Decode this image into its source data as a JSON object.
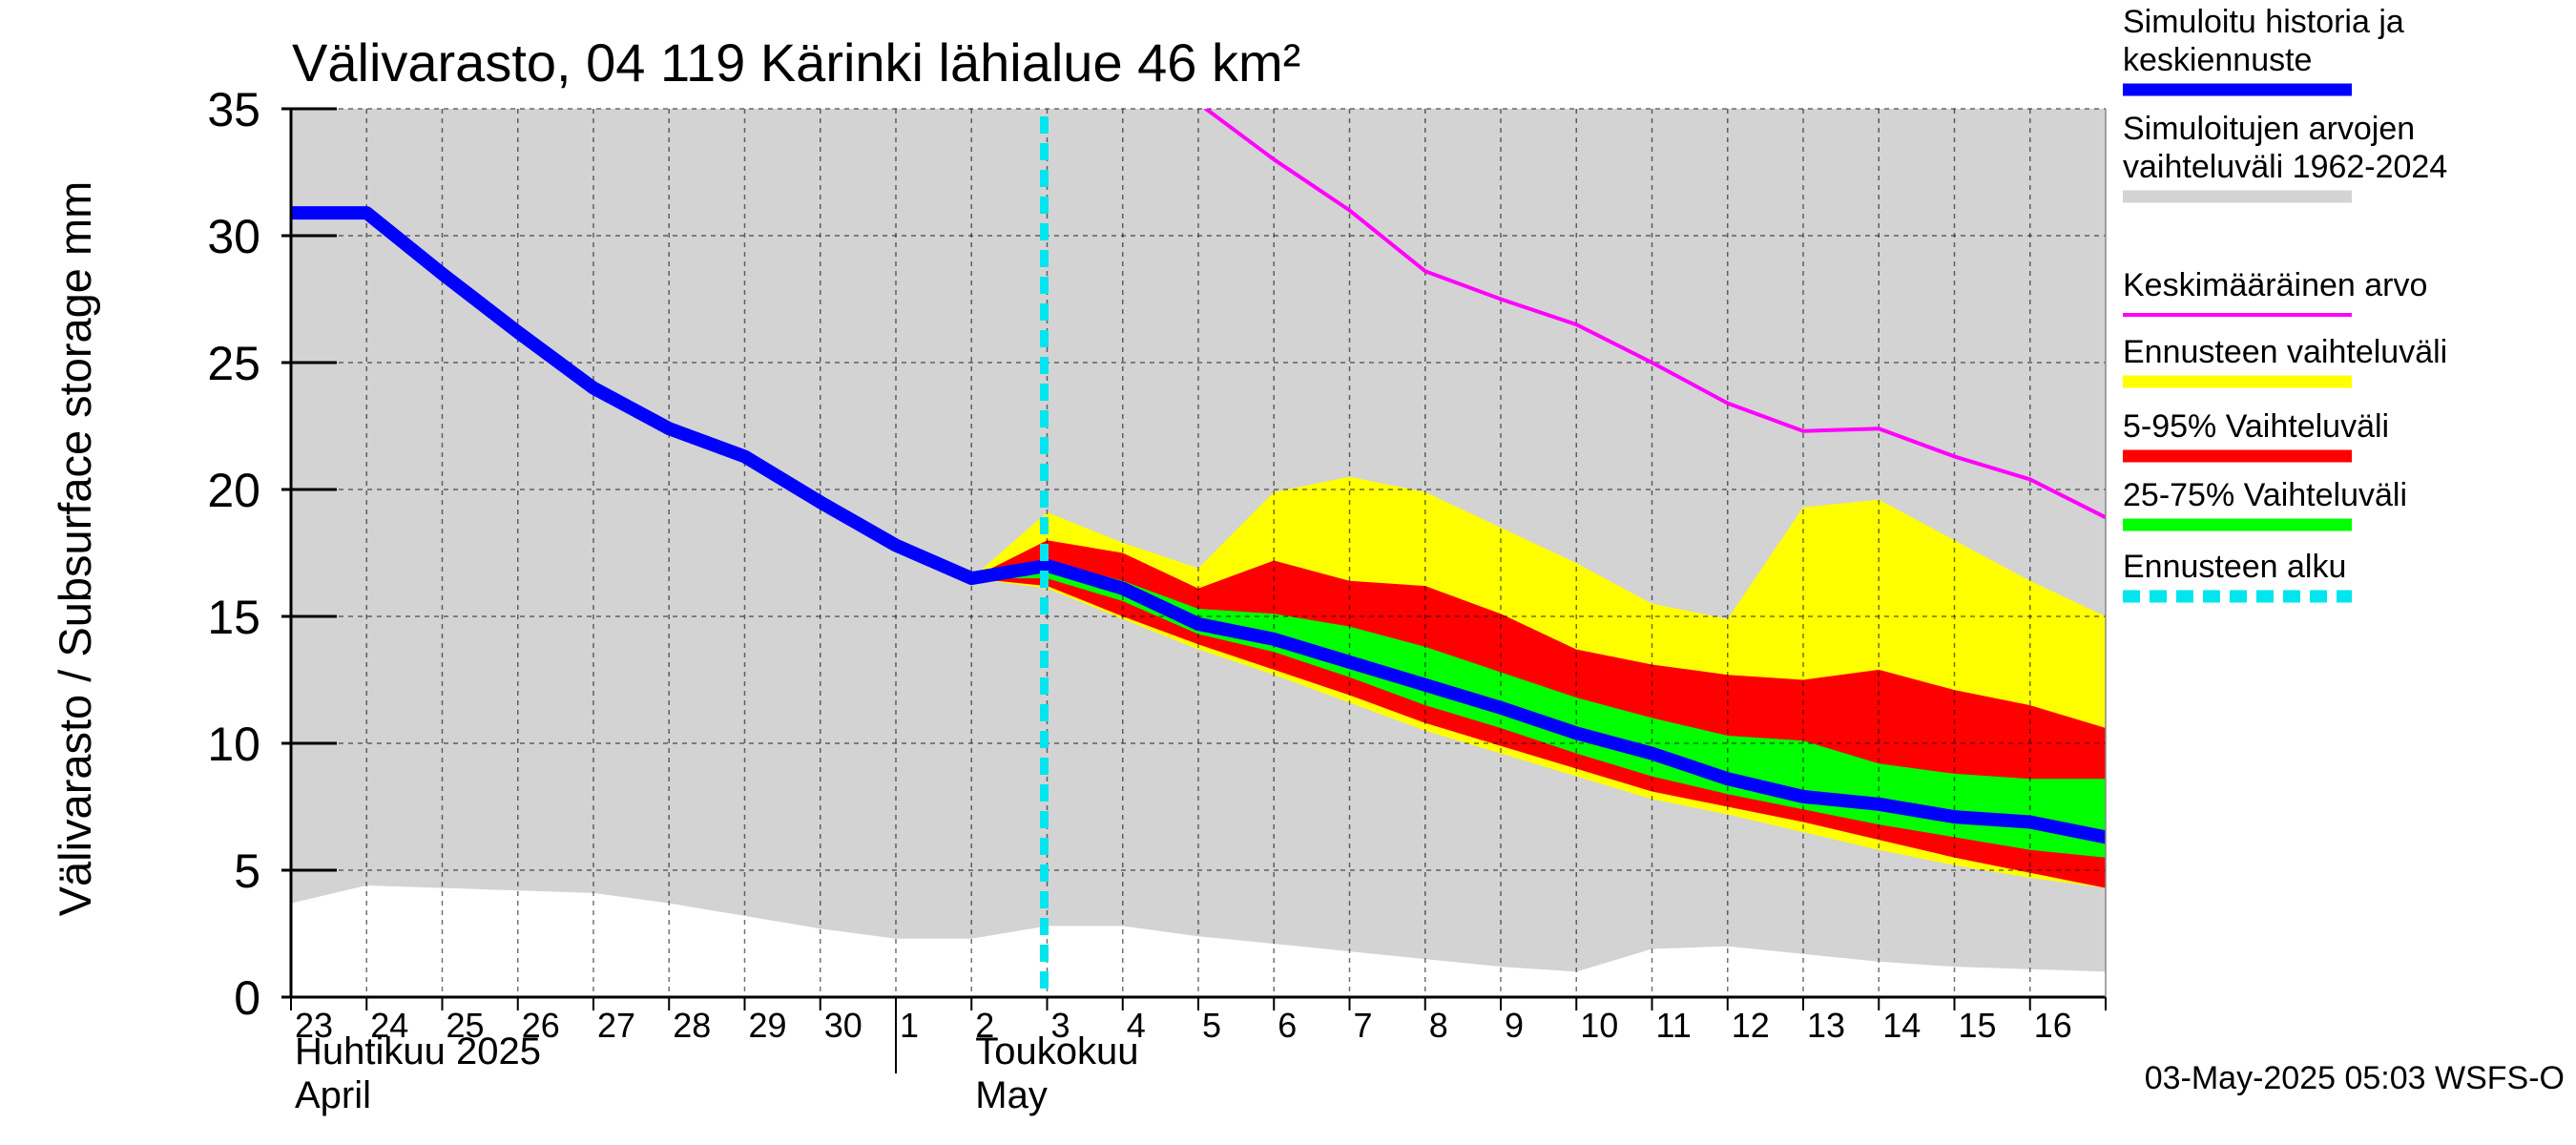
{
  "chart_data": {
    "type": "area",
    "title": "Välivarasto, 04 119 Kärinki lähialue 46 km²",
    "ylabel": "Välivarasto / Subsurface storage  mm",
    "ylim": [
      0,
      35
    ],
    "yticks": [
      0,
      5,
      10,
      15,
      20,
      25,
      30,
      35
    ],
    "xlim": [
      0,
      24
    ],
    "day_labels": [
      "23",
      "24",
      "25",
      "26",
      "27",
      "28",
      "29",
      "30",
      "1",
      "2",
      "3",
      "4",
      "5",
      "6",
      "7",
      "8",
      "9",
      "10",
      "11",
      "12",
      "13",
      "14",
      "15",
      "16"
    ],
    "month_labels": [
      {
        "line1": "Huhtikuu  2025",
        "line2": "April",
        "start_day": 0
      },
      {
        "line1": "Toukokuu",
        "line2": "May",
        "start_day": 9
      }
    ],
    "month_separator_day": 8,
    "grid": true,
    "legend_position": "right",
    "forecast_start_day": 10,
    "series": [
      {
        "name": "Simuloitujen arvojen vaihteluväli 1962-2024",
        "kind": "band",
        "color": "#d3d3d3",
        "x": [
          0,
          1,
          2,
          3,
          4,
          5,
          6,
          7,
          8,
          9,
          10,
          11,
          12,
          13,
          14,
          15,
          16,
          17,
          18,
          19,
          20,
          21,
          22,
          23,
          24
        ],
        "low": [
          3.7,
          4.4,
          4.3,
          4.2,
          4.1,
          3.7,
          3.2,
          2.7,
          2.3,
          2.3,
          2.8,
          2.8,
          2.4,
          2.1,
          1.8,
          1.5,
          1.2,
          1.0,
          1.9,
          2.0,
          1.7,
          1.4,
          1.2,
          1.1,
          1.0
        ],
        "high": [
          35,
          35,
          35,
          35,
          35,
          35,
          35,
          35,
          35,
          35,
          35,
          35,
          35,
          35,
          35,
          35,
          35,
          35,
          35,
          35,
          35,
          35,
          35,
          35,
          35
        ]
      },
      {
        "name": "Ennusteen vaihteluväli",
        "kind": "band",
        "color": "#ffff00",
        "x": [
          9,
          10,
          11,
          12,
          13,
          14,
          15,
          16,
          17,
          18,
          19,
          20,
          21,
          22,
          23,
          24
        ],
        "low": [
          16.5,
          16.1,
          14.9,
          13.7,
          12.7,
          11.6,
          10.5,
          9.6,
          8.7,
          7.8,
          7.2,
          6.5,
          5.8,
          5.2,
          4.7,
          4.3
        ],
        "high": [
          16.5,
          19.1,
          17.9,
          16.9,
          19.9,
          20.5,
          19.9,
          18.5,
          17.1,
          15.5,
          14.9,
          19.3,
          19.6,
          18.0,
          16.4,
          15.0
        ]
      },
      {
        "name": "5-95% Vaihteluväli",
        "kind": "band",
        "color": "#ff0000",
        "x": [
          9,
          10,
          11,
          12,
          13,
          14,
          15,
          16,
          17,
          18,
          19,
          20,
          21,
          22,
          23,
          24
        ],
        "low": [
          16.5,
          16.2,
          15.0,
          13.9,
          12.9,
          11.9,
          10.8,
          9.9,
          9.0,
          8.1,
          7.5,
          6.9,
          6.2,
          5.5,
          4.9,
          4.3
        ],
        "high": [
          16.5,
          18.0,
          17.5,
          16.1,
          17.2,
          16.4,
          16.2,
          15.1,
          13.7,
          13.1,
          12.7,
          12.5,
          12.9,
          12.1,
          11.5,
          10.6
        ]
      },
      {
        "name": "25-75% Vaihteluväli",
        "kind": "band",
        "color": "#00ff00",
        "x": [
          9,
          10,
          11,
          12,
          13,
          14,
          15,
          16,
          17,
          18,
          19,
          20,
          21,
          22,
          23,
          24
        ],
        "low": [
          16.5,
          16.5,
          15.6,
          14.3,
          13.6,
          12.6,
          11.5,
          10.6,
          9.6,
          8.7,
          8.0,
          7.4,
          6.8,
          6.3,
          5.8,
          5.5
        ],
        "high": [
          16.5,
          17.2,
          16.4,
          15.3,
          15.1,
          14.6,
          13.8,
          12.8,
          11.8,
          11.0,
          10.3,
          10.1,
          9.2,
          8.8,
          8.6,
          8.6
        ]
      },
      {
        "name": "Keskimääräinen arvo",
        "kind": "line",
        "color": "#ff00ff",
        "x": [
          12.1,
          13,
          14,
          15,
          16,
          17,
          18,
          19,
          20,
          21,
          22,
          23,
          24
        ],
        "y": [
          35.0,
          33.0,
          31.0,
          28.6,
          27.5,
          26.5,
          25.0,
          23.4,
          22.3,
          22.4,
          21.3,
          20.4,
          18.9
        ]
      },
      {
        "name": "Simuloitu historia ja keskiennuste",
        "kind": "line",
        "color": "#0000ff",
        "x": [
          0,
          1,
          2,
          3,
          4,
          5,
          6,
          7,
          8,
          9,
          10,
          11,
          12,
          13,
          14,
          15,
          16,
          17,
          18,
          19,
          20,
          21,
          22,
          23,
          24
        ],
        "y": [
          30.9,
          30.9,
          28.5,
          26.2,
          24.0,
          22.4,
          21.3,
          19.5,
          17.8,
          16.5,
          17.0,
          16.1,
          14.7,
          14.1,
          13.2,
          12.3,
          11.4,
          10.4,
          9.6,
          8.6,
          7.9,
          7.6,
          7.1,
          6.9,
          6.3
        ]
      }
    ]
  },
  "legend": [
    {
      "line1": "Simuloitu historia ja",
      "line2": "keskiennuste",
      "color": "#0000ff",
      "style": "thick"
    },
    {
      "line1": "Simuloitujen arvojen",
      "line2": "vaihteluväli 1962-2024",
      "color": "#d3d3d3",
      "style": "thick"
    },
    {
      "line1": "Keskimääräinen arvo",
      "line2": "",
      "color": "#ff00ff",
      "style": "thin"
    },
    {
      "line1": "Ennusteen vaihteluväli",
      "line2": "",
      "color": "#ffff00",
      "style": "thick"
    },
    {
      "line1": "5-95% Vaihteluväli",
      "line2": "",
      "color": "#ff0000",
      "style": "thick"
    },
    {
      "line1": "25-75% Vaihteluväli",
      "line2": "",
      "color": "#00ff00",
      "style": "thick"
    },
    {
      "line1": "Ennusteen alku",
      "line2": "",
      "color": "#00e5ee",
      "style": "dashed"
    }
  ],
  "footer": "03-May-2025 05:03 WSFS-O"
}
